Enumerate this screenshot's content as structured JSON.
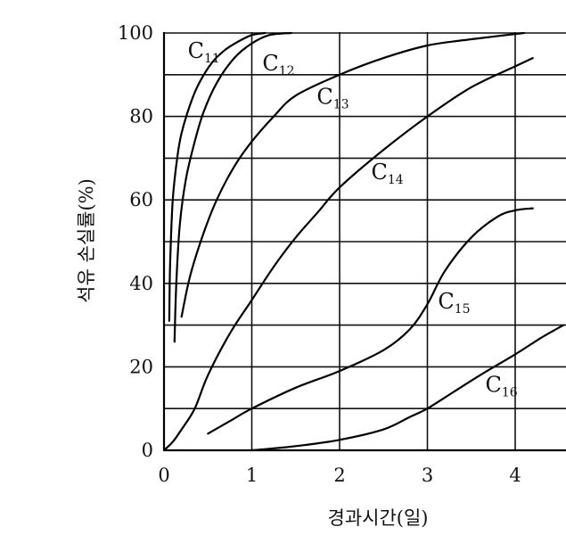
{
  "chart_data": {
    "type": "line",
    "title": "",
    "xlabel": "경과시간(일)",
    "ylabel": "석유 손실률(%)",
    "xlim": [
      0,
      4.5
    ],
    "ylim": [
      0,
      100
    ],
    "xticks": [
      "0",
      "1",
      "2",
      "3",
      "4"
    ],
    "yticks": [
      "0",
      "20",
      "40",
      "60",
      "80",
      "100"
    ],
    "grid": true,
    "series": [
      {
        "name": "C11",
        "label_main": "C",
        "label_sub": "11",
        "x": [
          0.06,
          0.07,
          0.1,
          0.15,
          0.2,
          0.3,
          0.4,
          0.55,
          0.7,
          0.85,
          1.0,
          1.15
        ],
        "y": [
          31,
          45,
          60,
          70,
          76,
          83,
          88,
          93,
          96,
          98,
          99.5,
          100
        ]
      },
      {
        "name": "C12",
        "label_main": "C",
        "label_sub": "12",
        "x": [
          0.12,
          0.14,
          0.18,
          0.25,
          0.35,
          0.45,
          0.6,
          0.8,
          1.0,
          1.2,
          1.45
        ],
        "y": [
          26,
          40,
          54,
          65,
          74,
          81,
          88,
          94,
          97.5,
          99.5,
          100
        ]
      },
      {
        "name": "C13",
        "label_main": "C",
        "label_sub": "13",
        "x": [
          0.2,
          0.3,
          0.45,
          0.6,
          0.8,
          1.0,
          1.25,
          1.5,
          2.0,
          2.5,
          3.0,
          3.5,
          4.1
        ],
        "y": [
          32,
          42,
          52,
          60,
          68,
          74,
          80,
          85,
          90,
          94,
          97,
          98.5,
          100
        ]
      },
      {
        "name": "C14",
        "label_main": "C",
        "label_sub": "14",
        "x": [
          0.0,
          0.1,
          0.2,
          0.35,
          0.5,
          0.75,
          1.0,
          1.25,
          1.5,
          1.75,
          2.0,
          2.5,
          3.0,
          3.5,
          4.0,
          4.2
        ],
        "y": [
          0,
          2,
          5,
          10,
          18,
          28,
          36,
          44,
          51,
          57,
          63,
          72,
          80,
          87,
          92,
          94
        ]
      },
      {
        "name": "C15",
        "label_main": "C",
        "label_sub": "15",
        "x": [
          0.5,
          0.75,
          1.0,
          1.5,
          2.0,
          2.5,
          2.8,
          3.0,
          3.2,
          3.5,
          3.8,
          4.0,
          4.2
        ],
        "y": [
          4,
          7,
          10,
          15,
          19,
          24,
          29,
          35,
          43,
          51,
          56,
          57.5,
          58
        ]
      },
      {
        "name": "C16",
        "label_main": "C",
        "label_sub": "16",
        "x": [
          1.0,
          1.5,
          2.0,
          2.5,
          2.8,
          3.0,
          3.3,
          3.6,
          4.0,
          4.3,
          4.55
        ],
        "y": [
          0,
          1,
          2.5,
          5,
          8,
          10,
          14,
          18,
          23,
          27,
          30
        ]
      }
    ]
  }
}
